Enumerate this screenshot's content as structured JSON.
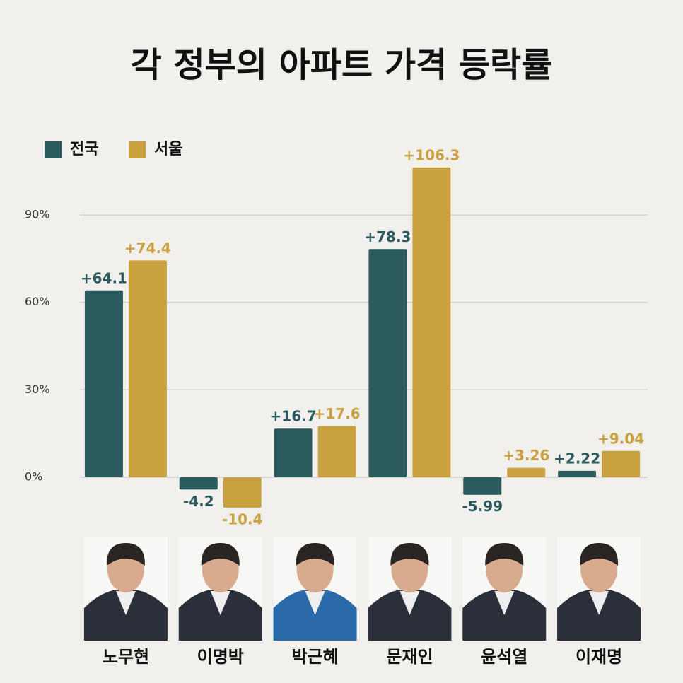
{
  "chart_data": {
    "type": "bar",
    "title": "각 정부의 아파트 가격 등락률",
    "categories": [
      "노무현",
      "이명박",
      "박근혜",
      "문재인",
      "윤석열",
      "이재명"
    ],
    "series": [
      {
        "name": "전국",
        "color": "#2b5a5f",
        "values": [
          64.1,
          -4.2,
          16.7,
          78.3,
          -5.99,
          2.22
        ],
        "value_labels": [
          "+64.1",
          "-4.2",
          "+16.7",
          "+78.3",
          "-5.99",
          "+2.22"
        ]
      },
      {
        "name": "서울",
        "color": "#c9a23f",
        "values": [
          74.4,
          -10.4,
          17.6,
          106.3,
          3.26,
          9.04
        ],
        "value_labels": [
          "+74.4",
          "-10.4",
          "+17.6",
          "+106.3",
          "+3.26",
          "+9.04"
        ]
      }
    ],
    "ylim": [
      -12,
      110
    ],
    "yticks": [
      {
        "value": 0,
        "label": "0%"
      },
      {
        "value": 30,
        "label": "30%"
      },
      {
        "value": 60,
        "label": "60%"
      },
      {
        "value": 90,
        "label": "90%"
      }
    ],
    "grid": true
  }
}
